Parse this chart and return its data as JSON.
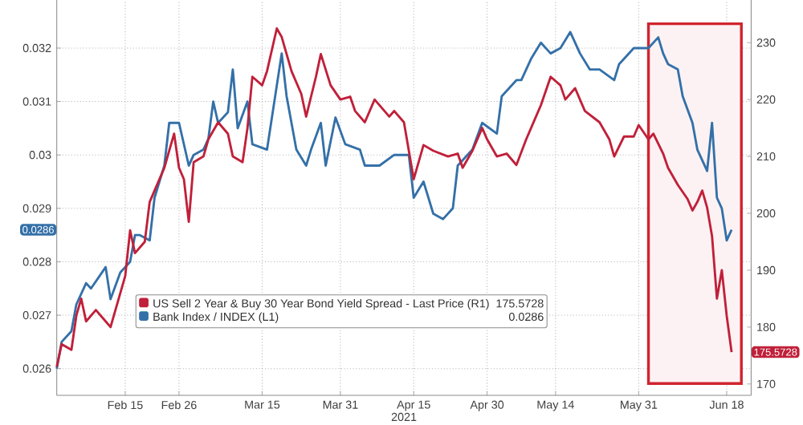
{
  "chart_data": {
    "type": "line",
    "xlabel": "2021",
    "series": [
      {
        "name": "US Sell 2 Year & Buy 30 Year Bond Yield Spread - Last Price (R1)",
        "color": "#c0203a",
        "axis": "y2",
        "x": [
          "2021-02-01",
          "2021-02-02",
          "2021-02-04",
          "2021-02-05",
          "2021-02-06",
          "2021-02-07",
          "2021-02-09",
          "2021-02-11",
          "2021-02-12",
          "2021-02-13",
          "2021-02-15",
          "2021-02-16",
          "2021-02-17",
          "2021-02-19",
          "2021-02-20",
          "2021-02-21",
          "2021-02-23",
          "2021-02-24",
          "2021-02-25",
          "2021-02-26",
          "2021-02-27",
          "2021-02-28",
          "2021-03-01",
          "2021-03-03",
          "2021-03-04",
          "2021-03-06",
          "2021-03-08",
          "2021-03-09",
          "2021-03-11",
          "2021-03-12",
          "2021-03-13",
          "2021-03-15",
          "2021-03-16",
          "2021-03-18",
          "2021-03-19",
          "2021-03-21",
          "2021-03-23",
          "2021-03-24",
          "2021-03-26",
          "2021-03-27",
          "2021-03-29",
          "2021-03-31",
          "2021-04-02",
          "2021-04-03",
          "2021-04-05",
          "2021-04-07",
          "2021-04-10",
          "2021-04-11",
          "2021-04-13",
          "2021-04-15",
          "2021-04-17",
          "2021-04-19",
          "2021-04-22",
          "2021-04-24",
          "2021-04-25",
          "2021-04-27",
          "2021-04-29",
          "2021-04-30",
          "2021-05-02",
          "2021-05-04",
          "2021-05-06",
          "2021-05-08",
          "2021-05-10",
          "2021-05-11",
          "2021-05-13",
          "2021-05-15",
          "2021-05-16",
          "2021-05-18",
          "2021-05-20",
          "2021-05-23",
          "2021-05-25",
          "2021-05-26",
          "2021-05-28",
          "2021-05-30",
          "2021-05-31",
          "2021-06-02",
          "2021-06-03",
          "2021-06-05",
          "2021-06-06",
          "2021-06-08",
          "2021-06-10",
          "2021-06-11",
          "2021-06-12",
          "2021-06-13",
          "2021-06-14",
          "2021-06-15",
          "2021-06-16",
          "2021-06-17",
          "2021-06-18",
          "2021-06-19"
        ],
        "values": [
          173,
          177,
          176,
          182,
          185,
          181,
          183,
          181,
          180,
          183,
          189,
          197,
          193,
          195,
          202,
          204,
          208,
          211,
          214,
          208,
          206,
          198.5,
          209,
          210,
          213,
          216,
          214,
          210,
          209,
          215,
          224,
          222.5,
          225,
          232.5,
          231,
          225,
          221,
          217,
          224,
          228,
          222.5,
          220,
          220.5,
          218,
          216,
          220,
          217,
          218,
          216,
          206,
          212,
          211,
          210,
          210.5,
          208,
          211,
          215,
          213,
          210,
          210.5,
          208.5,
          213,
          217,
          219,
          224,
          222.5,
          220,
          222,
          218,
          216,
          213,
          210,
          213.5,
          213.5,
          215.5,
          213,
          214,
          210.5,
          208,
          205,
          202.5,
          200.5,
          202,
          204,
          201,
          196,
          185,
          190,
          182,
          175.6
        ]
      },
      {
        "name": "Bank Index / INDEX (L1)",
        "color": "#3470a8",
        "axis": "y",
        "x": [
          "2021-02-01",
          "2021-02-02",
          "2021-02-04",
          "2021-02-05",
          "2021-02-07",
          "2021-02-08",
          "2021-02-11",
          "2021-02-12",
          "2021-02-14",
          "2021-02-16",
          "2021-02-17",
          "2021-02-18",
          "2021-02-20",
          "2021-02-21",
          "2021-02-23",
          "2021-02-24",
          "2021-02-26",
          "2021-02-28",
          "2021-03-01",
          "2021-03-03",
          "2021-03-04",
          "2021-03-05",
          "2021-03-06",
          "2021-03-08",
          "2021-03-09",
          "2021-03-10",
          "2021-03-12",
          "2021-03-13",
          "2021-03-16",
          "2021-03-17",
          "2021-03-19",
          "2021-03-20",
          "2021-03-22",
          "2021-03-24",
          "2021-03-25",
          "2021-03-27",
          "2021-03-28",
          "2021-03-30",
          "2021-04-01",
          "2021-04-04",
          "2021-04-05",
          "2021-04-08",
          "2021-04-11",
          "2021-04-14",
          "2021-04-15",
          "2021-04-17",
          "2021-04-19",
          "2021-04-21",
          "2021-04-23",
          "2021-04-24",
          "2021-04-27",
          "2021-04-29",
          "2021-05-02",
          "2021-05-03",
          "2021-05-06",
          "2021-05-07",
          "2021-05-09",
          "2021-05-11",
          "2021-05-13",
          "2021-05-15",
          "2021-05-17",
          "2021-05-19",
          "2021-05-21",
          "2021-05-23",
          "2021-05-26",
          "2021-05-27",
          "2021-05-30",
          "2021-06-02",
          "2021-06-04",
          "2021-06-05",
          "2021-06-06",
          "2021-06-08",
          "2021-06-09",
          "2021-06-11",
          "2021-06-12",
          "2021-06-13",
          "2021-06-14",
          "2021-06-15",
          "2021-06-16",
          "2021-06-17",
          "2021-06-18",
          "2021-06-19"
        ],
        "values": [
          0.026,
          0.0265,
          0.0267,
          0.0272,
          0.0276,
          0.0275,
          0.0279,
          0.0273,
          0.0278,
          0.028,
          0.0285,
          0.0285,
          0.0284,
          0.0292,
          0.0298,
          0.0306,
          0.0306,
          0.0298,
          0.03,
          0.0301,
          0.0303,
          0.031,
          0.0306,
          0.0308,
          0.0316,
          0.0305,
          0.031,
          0.0302,
          0.0301,
          0.0307,
          0.0319,
          0.0311,
          0.0301,
          0.0298,
          0.0301,
          0.0306,
          0.0298,
          0.0307,
          0.0302,
          0.0301,
          0.0298,
          0.0298,
          0.03,
          0.03,
          0.0292,
          0.0295,
          0.0289,
          0.0288,
          0.029,
          0.0298,
          0.0301,
          0.0306,
          0.0304,
          0.0311,
          0.0314,
          0.0314,
          0.0318,
          0.0321,
          0.0319,
          0.032,
          0.0323,
          0.0319,
          0.0316,
          0.0316,
          0.0314,
          0.0317,
          0.032,
          0.032,
          0.0322,
          0.0319,
          0.0317,
          0.0316,
          0.0311,
          0.0306,
          0.0301,
          0.0299,
          0.0297,
          0.0306,
          0.0292,
          0.029,
          0.0284,
          0.0286
        ]
      }
    ],
    "annotations": [
      "175.5728",
      "0.0286",
      "175.5728",
      "0.0286"
    ],
    "xlim": [
      "2021-02-01",
      "2021-06-23"
    ],
    "xticks": [
      {
        "value": "2021-02-15",
        "label": "Feb 15"
      },
      {
        "value": "2021-02-26",
        "label": "Feb 26"
      },
      {
        "value": "2021-03-15",
        "label": "Mar 15"
      },
      {
        "value": "2021-03-31",
        "label": "Mar 31"
      },
      {
        "value": "2021-04-15",
        "label": "Apr 15"
      },
      {
        "value": "2021-04-30",
        "label": "Apr 30"
      },
      {
        "value": "2021-05-14",
        "label": "May 14"
      },
      {
        "value": "2021-05-31",
        "label": "May 31"
      },
      {
        "value": "2021-06-18",
        "label": "Jun 18"
      }
    ],
    "ylim": [
      0.0255,
      0.0329
    ],
    "yticks": [
      0.026,
      0.027,
      0.028,
      0.029,
      0.03,
      0.031,
      0.032
    ],
    "y2lim": [
      168,
      237.5
    ],
    "y2ticks": [
      170,
      180,
      190,
      200,
      210,
      220,
      230
    ],
    "bands": [
      {
        "axis": "x",
        "from": "2021-06-02",
        "to": "2021-06-21",
        "color": "#d0242f"
      }
    ],
    "grid": true,
    "legend": "bottom",
    "marker": "none",
    "line_style": "solid"
  }
}
